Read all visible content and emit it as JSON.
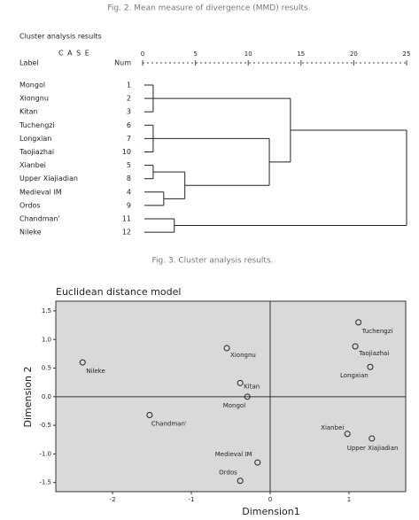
{
  "captions": {
    "fig2": "Fig. 2. Mean measure of divergence (MMD) results.",
    "fig3": "Fig. 3. Cluster analysis results."
  },
  "chart_data": [
    {
      "type": "dendrogram",
      "title": "Cluster analysis results",
      "case_header": "C A S E",
      "label_header": "Label",
      "num_header": "Num",
      "labels": [
        "Mongol",
        "Xiongnu",
        "Kitan",
        "Tuchengzi",
        "Longxian",
        "Taojiazhai",
        "Xianbei",
        "Upper Xiajiadian",
        "Medieval IM",
        "Ordos",
        "Chandman'",
        "Nileke"
      ],
      "nums": [
        1,
        2,
        3,
        6,
        7,
        10,
        5,
        8,
        4,
        9,
        11,
        12
      ],
      "xlim": [
        0,
        25
      ],
      "xticks": [
        0,
        5,
        10,
        15,
        20,
        25
      ],
      "merges": [
        {
          "rows": [
            0,
            2
          ],
          "height": 1
        },
        {
          "rows": [
            3,
            5
          ],
          "height": 1
        },
        {
          "rows": [
            6,
            7
          ],
          "height": 1
        },
        {
          "rows": [
            8,
            9
          ],
          "height": 2
        },
        {
          "rows": [
            10,
            11
          ],
          "height": 3
        },
        {
          "rows": [
            6,
            9
          ],
          "height": 4
        },
        {
          "rows": [
            3,
            9
          ],
          "height": 12
        },
        {
          "rows": [
            0,
            9
          ],
          "height": 14
        },
        {
          "rows": [
            0,
            11
          ],
          "height": 25
        }
      ]
    },
    {
      "type": "scatter",
      "title": "Euclidean distance model",
      "xlabel": "Dimension1",
      "ylabel": "Dimension 2",
      "xlim": [
        -2.72,
        1.72
      ],
      "ylim": [
        -1.66,
        1.67
      ],
      "xticks": [
        -2,
        -1,
        0,
        1
      ],
      "yticks": [
        -1.5,
        {
          "value": -1,
          "label": "-1.0"
        },
        -0.5,
        {
          "value": 0,
          "label": "0.0"
        },
        0.5,
        {
          "value": 1,
          "label": "1.0"
        },
        1.5
      ],
      "labels": [
        "Tuchengzi",
        "Taojiazhai",
        "Longxian",
        "Xiongnu",
        "Nileke",
        "Kitan",
        "Mongol",
        "Chandman'",
        "Xianbei",
        "Upper Xiajiadian",
        "Medieval IM",
        "Ordos"
      ],
      "x": [
        1.12,
        1.08,
        1.27,
        -0.55,
        -2.38,
        -0.38,
        -0.29,
        -1.53,
        0.98,
        1.29,
        -0.16,
        -0.38
      ],
      "y": [
        1.3,
        0.88,
        0.52,
        0.85,
        0.6,
        0.24,
        0.0,
        -0.32,
        -0.65,
        -0.73,
        -1.15,
        -1.47
      ],
      "zero_lines": true,
      "background": "#d9d9d9"
    }
  ]
}
